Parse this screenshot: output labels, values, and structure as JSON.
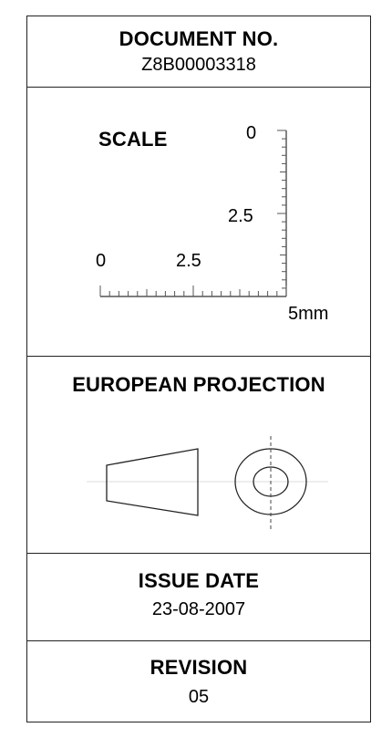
{
  "document": {
    "label": "DOCUMENT NO.",
    "number": "Z8B00003318"
  },
  "scale": {
    "label": "SCALE",
    "vertical_ticks": {
      "top": "0",
      "mid": "2.5"
    },
    "horizontal_ticks": {
      "left": "0",
      "mid": "2.5"
    },
    "unit_label": "5mm"
  },
  "projection": {
    "label": "EUROPEAN PROJECTION"
  },
  "issue": {
    "label": "ISSUE DATE",
    "date": "23-08-2007"
  },
  "revision": {
    "label": "REVISION",
    "number": "05"
  }
}
